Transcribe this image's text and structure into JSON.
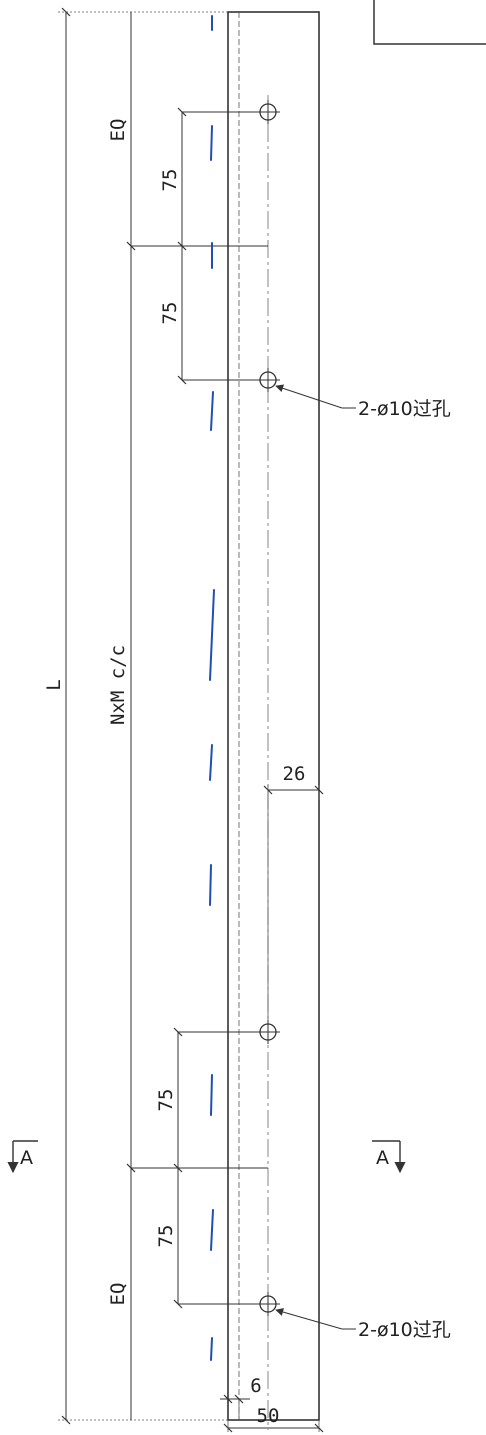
{
  "dimensions": {
    "overall_length": "L",
    "center_spacing": "NxM c/c",
    "end_segment_top": "EQ",
    "end_segment_bottom": "EQ",
    "hole_pitch_top_1": "75",
    "hole_pitch_top_2": "75",
    "hole_pitch_bottom_1": "75",
    "hole_pitch_bottom_2": "75",
    "hole_edge_offset": "26",
    "center_line_offset": "6",
    "plate_width": "50"
  },
  "notes": {
    "hole_callout_top": "2-ø10过孔",
    "hole_callout_bottom": "2-ø10过孔"
  },
  "section": {
    "left_label": "A",
    "right_label": "A"
  },
  "colors": {
    "line": "#333333",
    "blue_mark": "#1f4fb3"
  }
}
